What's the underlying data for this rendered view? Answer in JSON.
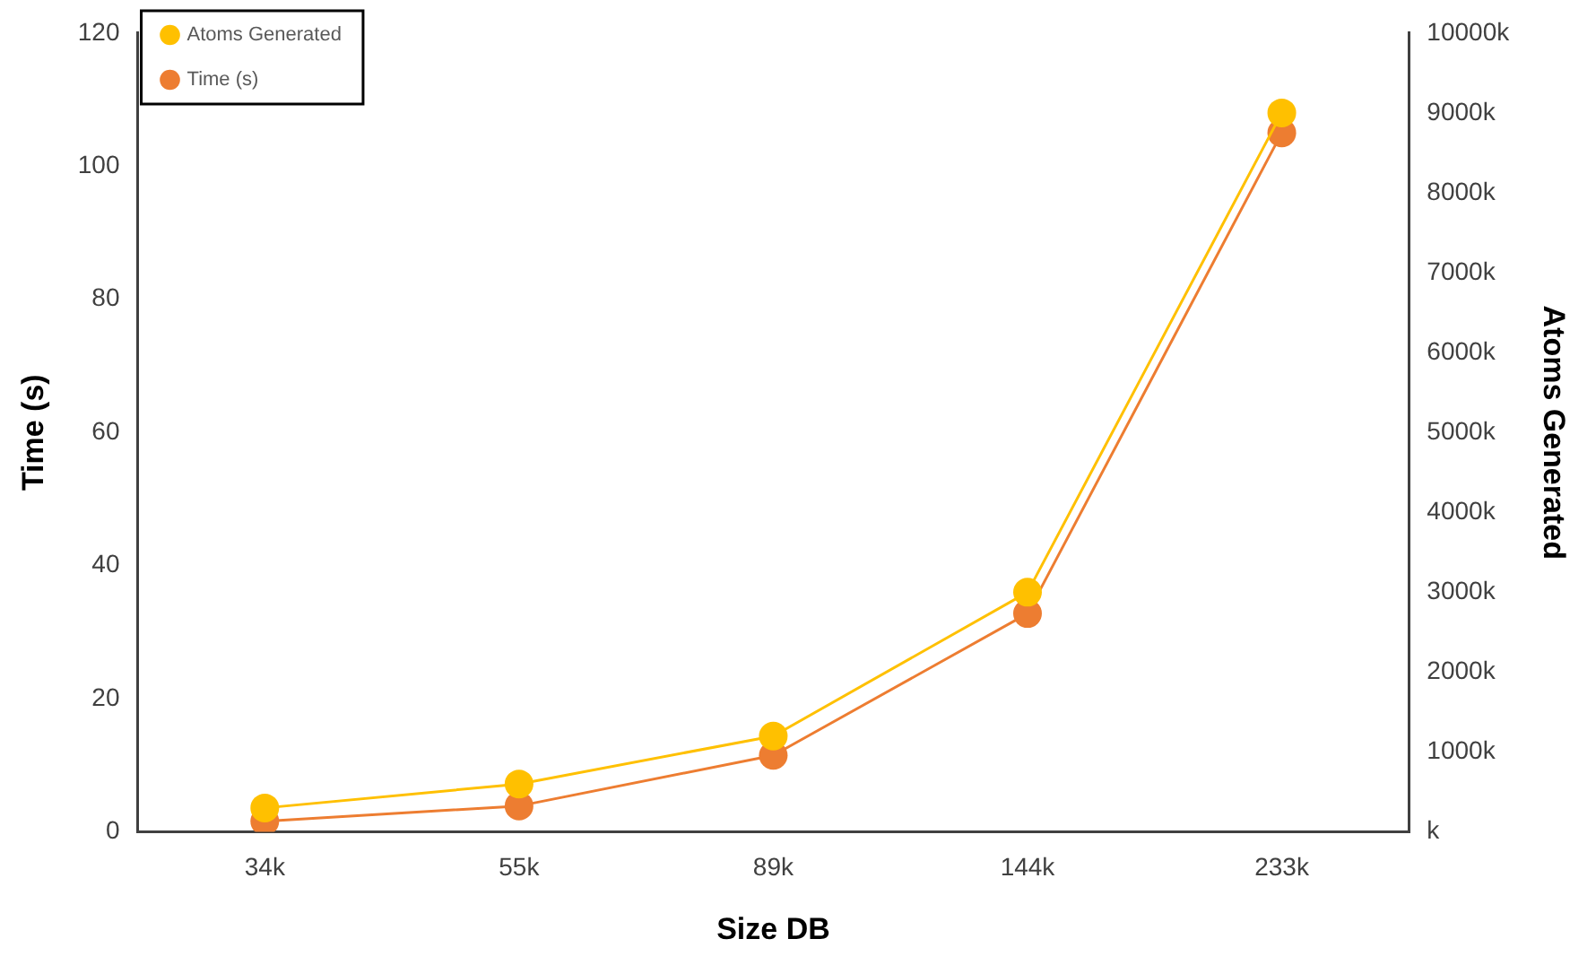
{
  "chart_data": {
    "type": "line",
    "xlabel": "Size DB",
    "ylabel": "Time (s)",
    "y2label": "Atoms Generated",
    "categories": [
      "34k",
      "55k",
      "89k",
      "144k",
      "233k"
    ],
    "series": [
      {
        "name": "Time (s)",
        "color": "#ed7d31",
        "values": [
          1.6,
          3.9,
          11.5,
          32.8,
          105
        ]
      },
      {
        "name": "Atoms Generated",
        "color": "#ffc000",
        "axis": "y2",
        "values": [
          300,
          600,
          1200,
          3000,
          9000
        ]
      }
    ],
    "ylim": [
      0,
      120
    ],
    "yticks": [
      0,
      20,
      40,
      60,
      80,
      100,
      120
    ],
    "y2lim": [
      0,
      10000
    ],
    "y2ticks": [
      {
        "value": 0,
        "label": "k"
      },
      {
        "value": 1000,
        "label": "1000k"
      },
      {
        "value": 2000,
        "label": "2000k"
      },
      {
        "value": 3000,
        "label": "3000k"
      },
      {
        "value": 4000,
        "label": "4000k"
      },
      {
        "value": 5000,
        "label": "5000k"
      },
      {
        "value": 6000,
        "label": "6000k"
      },
      {
        "value": 7000,
        "label": "7000k"
      },
      {
        "value": 8000,
        "label": "8000k"
      },
      {
        "value": 9000,
        "label": "9000k"
      },
      {
        "value": 10000,
        "label": "10000k"
      }
    ],
    "legend": "top left",
    "grid": false,
    "marker": "circle",
    "line_style": "solid"
  }
}
